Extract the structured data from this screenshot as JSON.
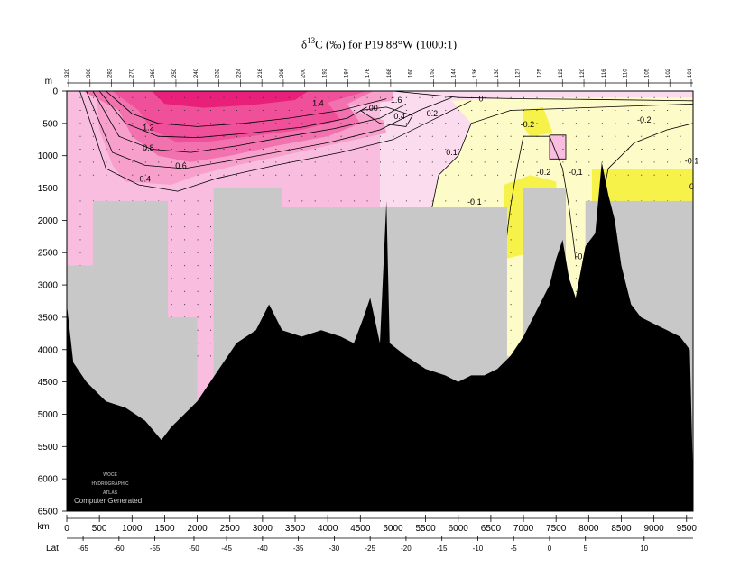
{
  "title": {
    "prefix": "δ",
    "sup": "13",
    "suffix": "C (‰) for P19 88°W (1000:1)"
  },
  "colors": {
    "c_gt_1_4": "#e8207a",
    "c_1_2": "#f0509a",
    "c_1_0": "#f272b0",
    "c_0_6": "#f7a0cc",
    "c_0_2": "#f9bde0",
    "c_0": "#fbdcef",
    "c_neg": "#fdfbc8",
    "c_neg2": "#f7f24a",
    "mask": "#c8c8c8",
    "topography": "#000000"
  },
  "chart_data": {
    "type": "heatmap",
    "title": "δ13C (‰) for P19 88°W (1000:1)",
    "xlabel": "km",
    "ylabel": "m",
    "xlim": [
      0,
      9600
    ],
    "ylim": [
      6500,
      0
    ],
    "x_ticks": [
      0,
      500,
      1000,
      1500,
      2000,
      2500,
      3000,
      3500,
      4000,
      4500,
      5000,
      5500,
      6000,
      6500,
      7000,
      7500,
      8000,
      8500,
      9000,
      9500
    ],
    "y_ticks": [
      0,
      500,
      1000,
      1500,
      2000,
      2500,
      3000,
      3500,
      4000,
      4500,
      5000,
      5500,
      6000,
      6500
    ],
    "lat_label": "Lat",
    "lat_ticks": [
      {
        "km": 250,
        "label": "-65"
      },
      {
        "km": 800,
        "label": "-60"
      },
      {
        "km": 1350,
        "label": "-55"
      },
      {
        "km": 1950,
        "label": "-50"
      },
      {
        "km": 2450,
        "label": "-45"
      },
      {
        "km": 3000,
        "label": "-40"
      },
      {
        "km": 3550,
        "label": "-35"
      },
      {
        "km": 4100,
        "label": "-30"
      },
      {
        "km": 4650,
        "label": "-25"
      },
      {
        "km": 5200,
        "label": "-20"
      },
      {
        "km": 5750,
        "label": "-15"
      },
      {
        "km": 6300,
        "label": "-10"
      },
      {
        "km": 6850,
        "label": "-5"
      },
      {
        "km": 7400,
        "label": "0"
      },
      {
        "km": 7950,
        "label": "5"
      },
      {
        "km": 8850,
        "label": "10"
      }
    ],
    "contour_labels": [
      {
        "km": 3850,
        "m": 230,
        "label": "1.4"
      },
      {
        "km": 1250,
        "m": 610,
        "label": "1.2"
      },
      {
        "km": 1250,
        "m": 920,
        "label": "0.8"
      },
      {
        "km": 1750,
        "m": 1200,
        "label": "0.6"
      },
      {
        "km": 1200,
        "m": 1400,
        "label": "0.4"
      },
      {
        "km": 4700,
        "m": 310,
        "label": "00"
      },
      {
        "km": 5050,
        "m": 180,
        "label": "1.6"
      },
      {
        "km": 5100,
        "m": 430,
        "label": "0.4"
      },
      {
        "km": 5600,
        "m": 390,
        "label": "0.2"
      },
      {
        "km": 6350,
        "m": 160,
        "label": "0"
      },
      {
        "km": 5900,
        "m": 990,
        "label": "0.1"
      },
      {
        "km": 6250,
        "m": 1760,
        "label": "-0.1"
      },
      {
        "km": 7060,
        "m": 560,
        "label": "-0.2"
      },
      {
        "km": 7310,
        "m": 1300,
        "label": "-0.2"
      },
      {
        "km": 7800,
        "m": 1300,
        "label": "-0.1"
      },
      {
        "km": 7900,
        "m": 2600,
        "label": "-0.1"
      },
      {
        "km": 8850,
        "m": 490,
        "label": "-0.2"
      },
      {
        "km": 9580,
        "m": 1120,
        "label": "-0.1"
      },
      {
        "km": 9580,
        "m": 1520,
        "label": "0"
      }
    ],
    "station_ids": [
      "320",
      "300",
      "282",
      "270",
      "260",
      "250",
      "240",
      "232",
      "224",
      "216",
      "208",
      "200",
      "192",
      "184",
      "176",
      "168",
      "160",
      "152",
      "144",
      "136",
      "130",
      "127",
      "125",
      "122",
      "120",
      "116",
      "110",
      "105",
      "102",
      "101"
    ]
  },
  "logo": {
    "line1": "WOCE",
    "line2": "HYDROGRAPHIC",
    "line3": "ATLAS",
    "caption": "Computer Generated"
  }
}
